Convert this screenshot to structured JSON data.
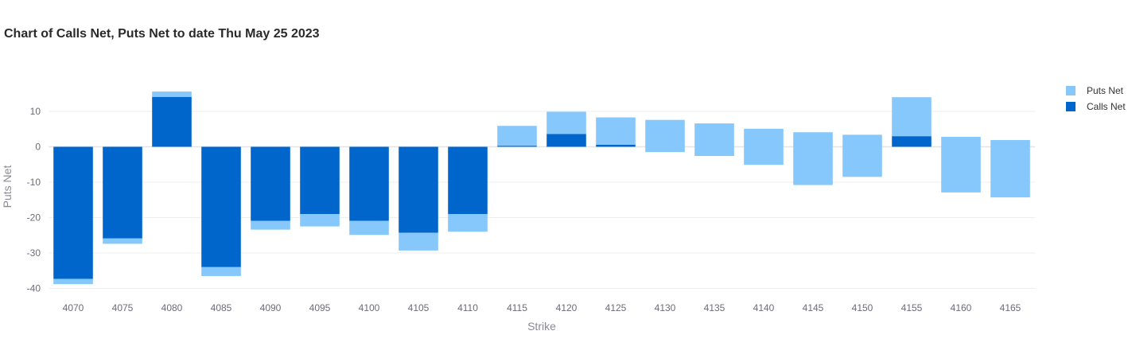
{
  "chart_data": {
    "type": "bar",
    "barmode": "relative",
    "title": "Chart of Calls Net, Puts Net to date Thu May 25 2023",
    "xlabel": "Strike",
    "ylabel": "Puts Net",
    "categories": [
      "4070",
      "4075",
      "4080",
      "4085",
      "4090",
      "4095",
      "4100",
      "4105",
      "4110",
      "4115",
      "4120",
      "4125",
      "4130",
      "4135",
      "4140",
      "4145",
      "4150",
      "4155",
      "4160",
      "4165"
    ],
    "ylim": [
      -41,
      17
    ],
    "yticks": [
      10,
      0,
      -10,
      -20,
      -30,
      -40
    ],
    "grid": true,
    "legend_position": "top-right",
    "series": [
      {
        "name": "Puts Net",
        "color": "#86c7fc",
        "values": [
          -1.5,
          -1.5,
          1.5,
          -2.5,
          -2.5,
          -3.5,
          -4,
          -5,
          -5,
          5.6,
          6.3,
          7.7,
          7.6,
          6.6,
          5.1,
          4.1,
          3.4,
          11,
          2.8,
          1.9
        ],
        "neg_values": [
          -1.5,
          -1.5,
          0,
          -2.5,
          -2.5,
          -3.5,
          -4,
          -5,
          -5,
          0,
          0,
          0,
          -1.5,
          -2.6,
          -5.1,
          -10.8,
          -8.5,
          0,
          -12.9,
          -14.3
        ]
      },
      {
        "name": "Calls Net",
        "color": "#0066cc",
        "values": [
          -37.3,
          -25.9,
          14.1,
          -34,
          -20.9,
          -19,
          -20.9,
          -24.3,
          -19,
          0.3,
          3.6,
          0.6,
          0,
          0,
          0,
          0,
          0,
          3,
          0,
          0
        ]
      }
    ]
  }
}
